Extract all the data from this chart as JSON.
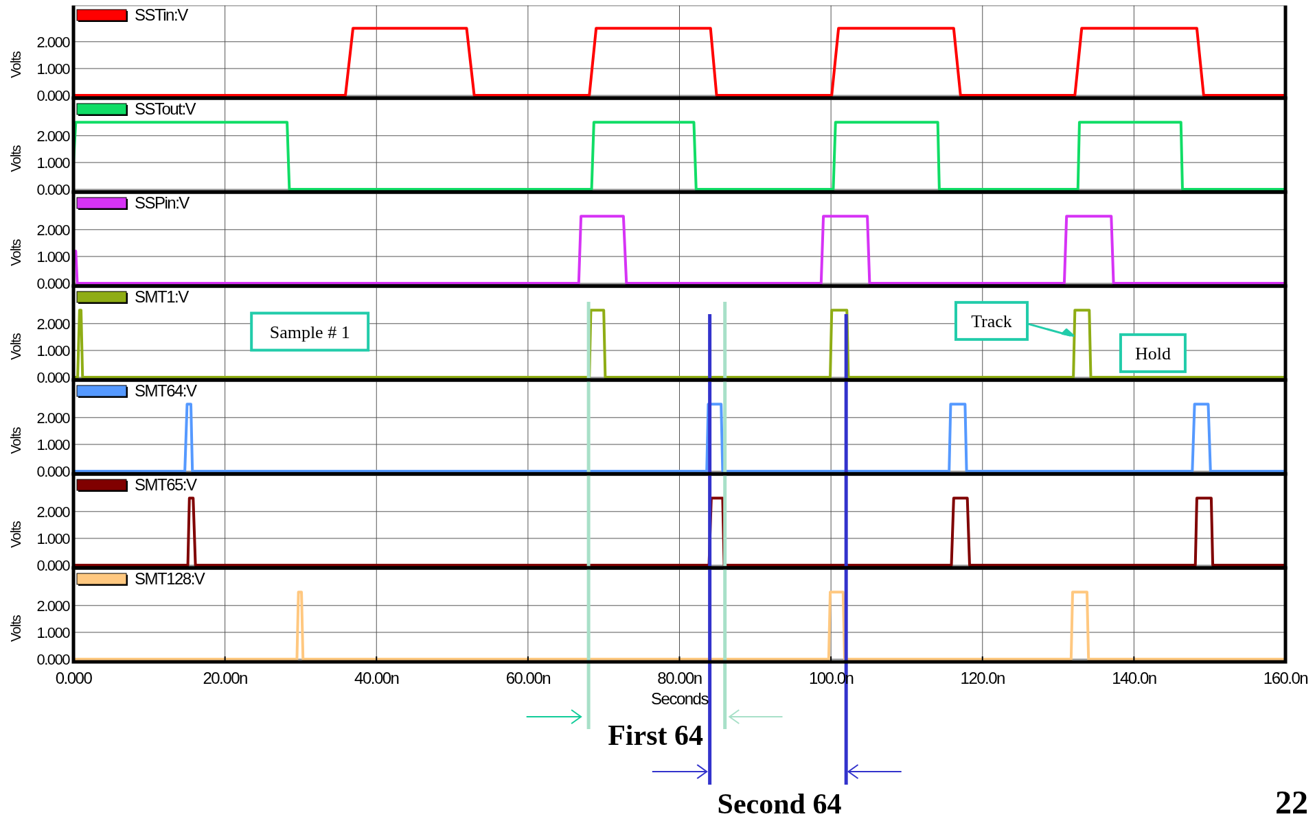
{
  "chart_data": [
    {
      "type": "line",
      "series": [
        {
          "name": "SSTin:V",
          "color": "#ff0000",
          "x": [
            0,
            35.9,
            36.9,
            51.9,
            52.9,
            68.1,
            69.0,
            84.1,
            84.9,
            100.1,
            101.0,
            116.2,
            117.1,
            132.2,
            133.1,
            148.3,
            149.2,
            160
          ],
          "values": [
            0,
            0,
            2.5,
            2.5,
            0,
            0,
            2.5,
            2.5,
            0,
            0,
            2.5,
            2.5,
            0,
            0,
            2.5,
            2.5,
            0,
            0
          ]
        }
      ],
      "xlim": [
        0,
        160
      ],
      "xticks": [
        0,
        20,
        40,
        60,
        80,
        100,
        120,
        140,
        160
      ],
      "ylim": [
        -0.1,
        3.4
      ],
      "yticks": [
        {
          "value": 0,
          "label": "0.000"
        },
        {
          "value": 1,
          "label": "1.000"
        },
        {
          "value": 2,
          "label": "2.000"
        }
      ],
      "ylabel": "Volts",
      "grid": true,
      "legend": "top left",
      "tick_labels": "y"
    },
    {
      "type": "line",
      "series": [
        {
          "name": "SSTout:V",
          "color": "#11dd66",
          "x": [
            0,
            0.3,
            28.2,
            28.5,
            68.4,
            68.7,
            81.9,
            82.2,
            100.3,
            100.6,
            114.1,
            114.3,
            132.6,
            132.8,
            146.2,
            146.4,
            160
          ],
          "values": [
            1,
            2.5,
            2.5,
            0,
            0,
            2.5,
            2.5,
            0,
            0,
            2.5,
            2.5,
            0,
            0,
            2.5,
            2.5,
            0,
            0
          ]
        }
      ],
      "xlim": [
        0,
        160
      ],
      "xticks": [
        0,
        20,
        40,
        60,
        80,
        100,
        120,
        140,
        160
      ],
      "ylim": [
        -0.1,
        3.4
      ],
      "yticks": [
        {
          "value": 0,
          "label": "0.000"
        },
        {
          "value": 1,
          "label": "1.000"
        },
        {
          "value": 2,
          "label": "2.000"
        }
      ],
      "ylabel": "Volts",
      "grid": true,
      "legend": "top left",
      "tick_labels": "y"
    },
    {
      "type": "line",
      "series": [
        {
          "name": "SSPin:V",
          "color": "#d633f5",
          "x": [
            0.3,
            0.5,
            66.7,
            67.0,
            72.6,
            73.0,
            98.7,
            99.0,
            104.8,
            105.1,
            130.8,
            131.1,
            137.0,
            137.3,
            160
          ],
          "values": [
            1.2,
            0,
            0,
            2.5,
            2.5,
            0,
            0,
            2.5,
            2.5,
            0,
            0,
            2.5,
            2.5,
            0,
            0
          ]
        }
      ],
      "xlim": [
        0,
        160
      ],
      "xticks": [
        0,
        20,
        40,
        60,
        80,
        100,
        120,
        140,
        160
      ],
      "ylim": [
        -0.1,
        3.4
      ],
      "yticks": [
        {
          "value": 0,
          "label": "0.000"
        },
        {
          "value": 1,
          "label": "1.000"
        },
        {
          "value": 2,
          "label": "2.000"
        }
      ],
      "ylabel": "Volts",
      "grid": true,
      "legend": "top left",
      "tick_labels": "y"
    },
    {
      "type": "line",
      "series": [
        {
          "name": "SMT1:V",
          "color": "#8fad15",
          "x": [
            0,
            0.55,
            0.8,
            1.0,
            1.2,
            68.1,
            68.3,
            70.0,
            70.2,
            99.9,
            100.1,
            102.1,
            102.3,
            132.0,
            132.2,
            134.1,
            134.3,
            160
          ],
          "values": [
            0,
            0,
            2.5,
            2.5,
            0,
            0,
            2.5,
            2.5,
            0,
            0,
            2.5,
            2.5,
            0,
            0,
            2.5,
            2.5,
            0,
            0
          ]
        }
      ],
      "xlim": [
        0,
        160
      ],
      "xticks": [
        0,
        20,
        40,
        60,
        80,
        100,
        120,
        140,
        160
      ],
      "ylim": [
        -0.1,
        3.4
      ],
      "yticks": [
        {
          "value": 0,
          "label": "0.000"
        },
        {
          "value": 1,
          "label": "1.000"
        },
        {
          "value": 2,
          "label": "2.000"
        }
      ],
      "ylabel": "Volts",
      "grid": true,
      "legend": "top left",
      "tick_labels": "y",
      "ref_lines": [
        {
          "axis": "x",
          "value": 68,
          "color": "#a8e0c8"
        },
        {
          "axis": "x",
          "value": 86,
          "color": "#a8e0c8"
        },
        {
          "axis": "x",
          "value": 84,
          "color": "#3333cc"
        },
        {
          "axis": "x",
          "value": 102,
          "color": "#3333cc"
        }
      ],
      "annotations": [
        "Sample # 1",
        {
          "text": "Track",
          "x": 132,
          "y": 1.55
        },
        "Hold"
      ]
    },
    {
      "type": "line",
      "series": [
        {
          "name": "SMT64:V",
          "color": "#5599ff",
          "x": [
            0,
            14.7,
            15.0,
            15.5,
            15.7,
            83.6,
            83.8,
            85.5,
            85.7,
            115.6,
            115.8,
            117.7,
            117.9,
            147.7,
            148.0,
            149.8,
            150.1,
            160
          ],
          "values": [
            0,
            0,
            2.5,
            2.5,
            0,
            0,
            2.5,
            2.5,
            0,
            0,
            2.5,
            2.5,
            0,
            0,
            2.5,
            2.5,
            0,
            0
          ]
        }
      ],
      "xlim": [
        0,
        160
      ],
      "xticks": [
        0,
        20,
        40,
        60,
        80,
        100,
        120,
        140,
        160
      ],
      "ylim": [
        -0.1,
        3.4
      ],
      "yticks": [
        {
          "value": 0,
          "label": "0.000"
        },
        {
          "value": 1,
          "label": "1.000"
        },
        {
          "value": 2,
          "label": "2.000"
        }
      ],
      "ylabel": "Volts",
      "grid": true,
      "legend": "top left",
      "tick_labels": "y",
      "ref_lines": [
        {
          "axis": "x",
          "value": 68,
          "color": "#a8e0c8"
        },
        {
          "axis": "x",
          "value": 86,
          "color": "#a8e0c8"
        },
        {
          "axis": "x",
          "value": 84,
          "color": "#3333cc"
        },
        {
          "axis": "x",
          "value": 102,
          "color": "#3333cc"
        }
      ]
    },
    {
      "type": "line",
      "series": [
        {
          "name": "SMT65:V",
          "color": "#800000",
          "x": [
            0,
            15.1,
            15.3,
            15.8,
            16.1,
            83.9,
            84.2,
            85.7,
            85.9,
            115.9,
            116.2,
            118.0,
            118.3,
            148.1,
            148.3,
            150.2,
            150.4,
            160
          ],
          "values": [
            0,
            0,
            2.5,
            2.5,
            0,
            0,
            2.5,
            2.5,
            0,
            0,
            2.5,
            2.5,
            0,
            0,
            2.5,
            2.5,
            0,
            0
          ]
        }
      ],
      "xlim": [
        0,
        160
      ],
      "xticks": [
        0,
        20,
        40,
        60,
        80,
        100,
        120,
        140,
        160
      ],
      "ylim": [
        -0.1,
        3.4
      ],
      "yticks": [
        {
          "value": 0,
          "label": "0.000"
        },
        {
          "value": 1,
          "label": "1.000"
        },
        {
          "value": 2,
          "label": "2.000"
        }
      ],
      "ylabel": "Volts",
      "grid": true,
      "legend": "top left",
      "tick_labels": "y",
      "ref_lines": [
        {
          "axis": "x",
          "value": 68,
          "color": "#a8e0c8"
        },
        {
          "axis": "x",
          "value": 86,
          "color": "#a8e0c8"
        },
        {
          "axis": "x",
          "value": 84,
          "color": "#3333cc"
        },
        {
          "axis": "x",
          "value": 102,
          "color": "#3333cc"
        }
      ]
    },
    {
      "type": "line",
      "series": [
        {
          "name": "SMT128:V",
          "color": "#ffc880",
          "x": [
            0,
            29.5,
            29.7,
            30.1,
            30.3,
            99.7,
            99.9,
            101.6,
            101.8,
            131.7,
            131.9,
            133.8,
            134.0,
            160
          ],
          "values": [
            0,
            0,
            2.5,
            2.5,
            0,
            0,
            2.5,
            2.5,
            0,
            0,
            2.5,
            2.5,
            0,
            0
          ]
        }
      ],
      "xlim": [
        0,
        160
      ],
      "xticks": [
        {
          "value": 0,
          "label": "0.000"
        },
        {
          "value": 20,
          "label": "20.00n"
        },
        {
          "value": 40,
          "label": "40.00n"
        },
        {
          "value": 60,
          "label": "60.00n"
        },
        {
          "value": 80,
          "label": "80.00n"
        },
        {
          "value": 100,
          "label": "100.0n"
        },
        {
          "value": 120,
          "label": "120.0n"
        },
        {
          "value": 140,
          "label": "140.0n"
        },
        {
          "value": 160,
          "label": "160.0n"
        }
      ],
      "ylim": [
        -0.1,
        3.4
      ],
      "yticks": [
        {
          "value": 0,
          "label": "0.000"
        },
        {
          "value": 1,
          "label": "1.000"
        },
        {
          "value": 2,
          "label": "2.000"
        }
      ],
      "ylabel": "Volts",
      "xlabel": "Seconds",
      "grid": true,
      "legend": "top left",
      "ref_lines": [
        {
          "axis": "x",
          "value": 68,
          "color": "#a8e0c8"
        },
        {
          "axis": "x",
          "value": 86,
          "color": "#a8e0c8"
        },
        {
          "axis": "x",
          "value": 84,
          "color": "#3333cc"
        },
        {
          "axis": "x",
          "value": 102,
          "color": "#3333cc"
        }
      ],
      "annotations": [
        "First 64",
        "Second 64",
        "22"
      ]
    }
  ]
}
